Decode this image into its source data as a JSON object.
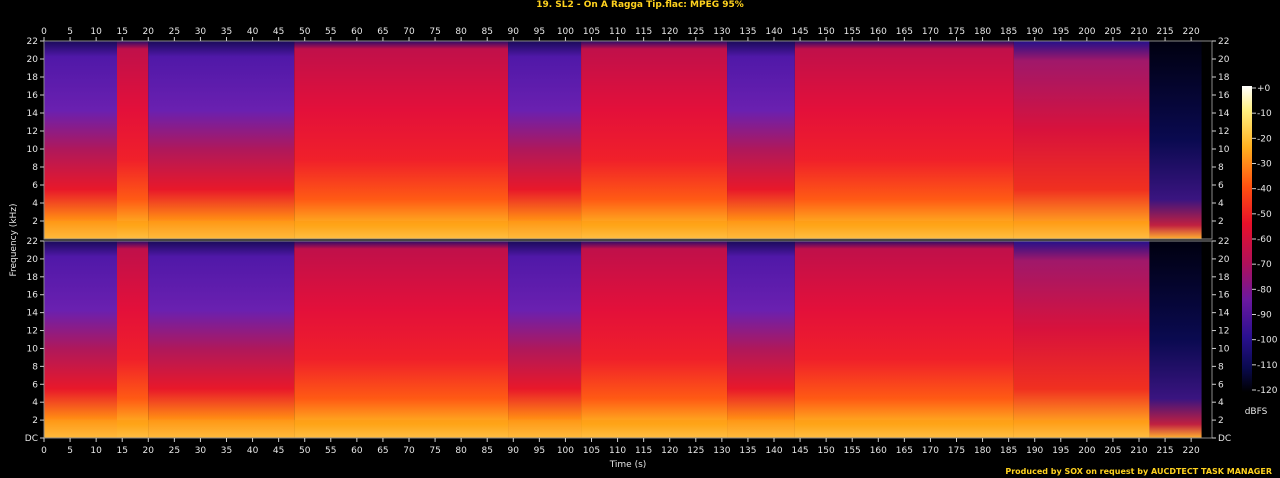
{
  "title": "19. SL2 - On A Ragga Tip.flac: MPEG 95%",
  "credit": "Produced by SOX on request by AUCDTECT TASK MANAGER",
  "chart_data": {
    "type": "heatmap",
    "title": "19. SL2 - On A Ragga Tip.flac: MPEG 95%",
    "xlabel": "Time (s)",
    "ylabel": "Frequency (kHz)",
    "xlim": [
      0,
      224
    ],
    "ylim": [
      0,
      22
    ],
    "x_ticks": [
      0,
      5,
      10,
      15,
      20,
      25,
      30,
      35,
      40,
      45,
      50,
      55,
      60,
      65,
      70,
      75,
      80,
      85,
      90,
      95,
      100,
      105,
      110,
      115,
      120,
      125,
      130,
      135,
      140,
      145,
      150,
      155,
      160,
      165,
      170,
      175,
      180,
      185,
      190,
      195,
      200,
      205,
      210,
      215,
      220
    ],
    "y_ticks_top": [
      "22",
      "20",
      "18",
      "16",
      "14",
      "12",
      "10",
      "8",
      "6",
      "4",
      "2"
    ],
    "y_ticks_bottom": [
      "22",
      "20",
      "18",
      "16",
      "14",
      "12",
      "10",
      "8",
      "6",
      "4",
      "2",
      "DC"
    ],
    "channels": 2,
    "colorbar": {
      "label": "dBFS",
      "ticks": [
        "+0",
        "-10",
        "-20",
        "-30",
        "-40",
        "-50",
        "-60",
        "-70",
        "-80",
        "-90",
        "-100",
        "-110",
        "-120"
      ],
      "range": [
        -120,
        0
      ]
    },
    "segments": [
      {
        "t0": 0,
        "t1": 14,
        "energy": "medium"
      },
      {
        "t0": 14,
        "t1": 20,
        "energy": "high"
      },
      {
        "t0": 20,
        "t1": 48,
        "energy": "medium"
      },
      {
        "t0": 48,
        "t1": 89,
        "energy": "high"
      },
      {
        "t0": 89,
        "t1": 103,
        "energy": "medium"
      },
      {
        "t0": 103,
        "t1": 131,
        "energy": "high"
      },
      {
        "t0": 131,
        "t1": 144,
        "energy": "medium"
      },
      {
        "t0": 144,
        "t1": 186,
        "energy": "high"
      },
      {
        "t0": 186,
        "t1": 212,
        "energy": "mixed"
      },
      {
        "t0": 212,
        "t1": 222,
        "energy": "fade"
      }
    ],
    "colors": {
      "high": "#e8123a",
      "medium": "#4a18a8",
      "low_band": "#ff9a10",
      "fade": "#0a0a5a",
      "background": "#000000"
    }
  }
}
